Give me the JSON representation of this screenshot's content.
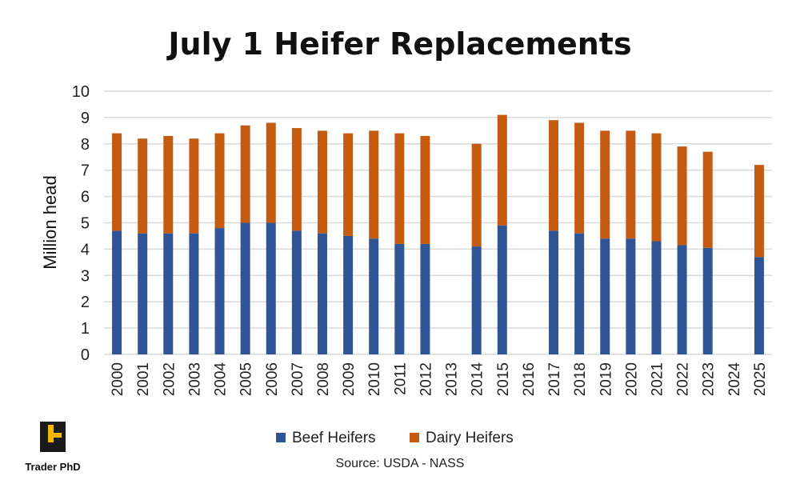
{
  "chart_data": {
    "type": "bar",
    "stacked": true,
    "title": "July 1 Heifer Replacements",
    "ylabel": "Million head",
    "xlabel": "",
    "ylim": [
      0,
      10
    ],
    "yticks": [
      0,
      1,
      2,
      3,
      4,
      5,
      6,
      7,
      8,
      9,
      10
    ],
    "grid": true,
    "legend_position": "bottom",
    "categories": [
      "2000",
      "2001",
      "2002",
      "2003",
      "2004",
      "2005",
      "2006",
      "2007",
      "2008",
      "2009",
      "2010",
      "2011",
      "2012",
      "2013",
      "2014",
      "2015",
      "2016",
      "2017",
      "2018",
      "2019",
      "2020",
      "2021",
      "2022",
      "2023",
      "2024",
      "2025"
    ],
    "series": [
      {
        "name": "Beef Heifers",
        "color": "#2F5597",
        "values": [
          4.7,
          4.6,
          4.6,
          4.6,
          4.8,
          5.0,
          5.0,
          4.7,
          4.6,
          4.5,
          4.4,
          4.2,
          4.2,
          null,
          4.1,
          4.9,
          null,
          4.7,
          4.6,
          4.4,
          4.4,
          4.3,
          4.15,
          4.05,
          null,
          3.7
        ]
      },
      {
        "name": "Dairy Heifers",
        "color": "#C55A11",
        "values": [
          3.7,
          3.6,
          3.7,
          3.6,
          3.6,
          3.7,
          3.8,
          3.9,
          3.9,
          3.9,
          4.1,
          4.2,
          4.1,
          null,
          3.9,
          4.2,
          null,
          4.2,
          4.2,
          4.1,
          4.1,
          4.1,
          3.75,
          3.65,
          null,
          3.5
        ]
      }
    ],
    "source": "Source: USDA - NASS"
  },
  "logo": {
    "text": "Trader PhD",
    "color": "#F5B800"
  }
}
